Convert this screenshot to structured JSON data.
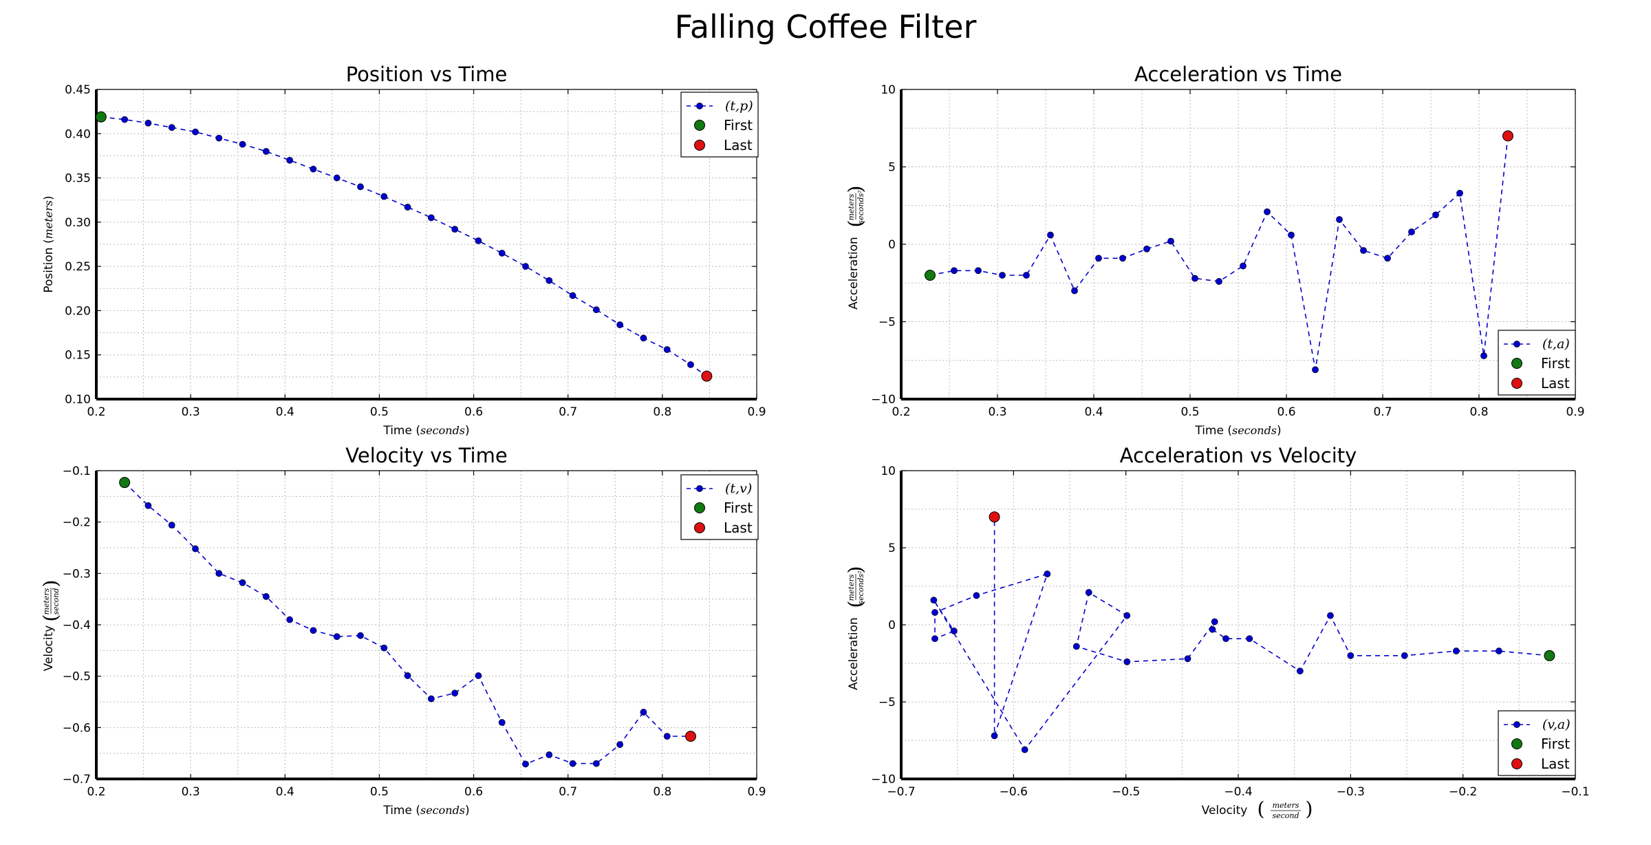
{
  "suptitle": "Falling Coffee Filter",
  "colors": {
    "series": "#0000cc",
    "first": "#127812",
    "last": "#dd1111",
    "grid": "#b8b8b8"
  },
  "chart_data": [
    {
      "type": "line",
      "title": "Position vs Time",
      "xlabel": "Time",
      "xlabel_unit": "seconds",
      "ylabel": "Position",
      "ylabel_unit": "meters",
      "xlim": [
        0.2,
        0.9
      ],
      "ylim": [
        0.1,
        0.45
      ],
      "xticks": [
        0.2,
        0.3,
        0.4,
        0.5,
        0.6,
        0.7,
        0.8,
        0.9
      ],
      "xtick_labels": [
        "0.2",
        "0.3",
        "0.4",
        "0.5",
        "0.6",
        "0.7",
        "0.8",
        "0.9"
      ],
      "yticks": [
        0.1,
        0.15,
        0.2,
        0.25,
        0.3,
        0.35,
        0.4,
        0.45
      ],
      "ytick_labels": [
        "0.10",
        "0.15",
        "0.20",
        "0.25",
        "0.30",
        "0.35",
        "0.40",
        "0.45"
      ],
      "grid": true,
      "legend_position": "top-right",
      "legend": [
        "(t,p)",
        "First",
        "Last"
      ],
      "series": [
        {
          "name": "(t,p)",
          "x": [
            0.205,
            0.23,
            0.255,
            0.28,
            0.305,
            0.33,
            0.355,
            0.38,
            0.405,
            0.43,
            0.455,
            0.48,
            0.505,
            0.53,
            0.555,
            0.58,
            0.605,
            0.63,
            0.655,
            0.68,
            0.705,
            0.73,
            0.755,
            0.78,
            0.805,
            0.83,
            0.847
          ],
          "y": [
            0.419,
            0.416,
            0.412,
            0.407,
            0.402,
            0.395,
            0.388,
            0.38,
            0.37,
            0.36,
            0.35,
            0.34,
            0.329,
            0.317,
            0.305,
            0.292,
            0.279,
            0.265,
            0.25,
            0.234,
            0.217,
            0.201,
            0.184,
            0.169,
            0.156,
            0.139,
            0.126
          ]
        }
      ],
      "first_point": [
        0.205,
        0.419
      ],
      "last_point": [
        0.847,
        0.126
      ]
    },
    {
      "type": "line",
      "title": "Acceleration vs Time",
      "xlabel": "Time",
      "xlabel_unit": "seconds",
      "ylabel": "Acceleration",
      "ylabel_unit_num": "meters",
      "ylabel_unit_den": "seconds²",
      "xlim": [
        0.2,
        0.9
      ],
      "ylim": [
        -10,
        10
      ],
      "xticks": [
        0.2,
        0.3,
        0.4,
        0.5,
        0.6,
        0.7,
        0.8,
        0.9
      ],
      "xtick_labels": [
        "0.2",
        "0.3",
        "0.4",
        "0.5",
        "0.6",
        "0.7",
        "0.8",
        "0.9"
      ],
      "yticks": [
        -10,
        -5,
        0,
        5,
        10
      ],
      "ytick_labels": [
        "−10",
        "−5",
        "0",
        "5",
        "10"
      ],
      "grid": true,
      "legend_position": "bottom-right",
      "legend": [
        "(t,a)",
        "First",
        "Last"
      ],
      "series": [
        {
          "name": "(t,a)",
          "x": [
            0.23,
            0.255,
            0.28,
            0.305,
            0.33,
            0.355,
            0.38,
            0.405,
            0.43,
            0.455,
            0.48,
            0.505,
            0.53,
            0.555,
            0.58,
            0.605,
            0.63,
            0.655,
            0.68,
            0.705,
            0.73,
            0.755,
            0.78,
            0.805,
            0.83
          ],
          "y": [
            -2.0,
            -1.7,
            -1.7,
            -2.0,
            -2.0,
            0.6,
            -3.0,
            -0.9,
            -0.9,
            -0.3,
            0.2,
            -2.2,
            -2.4,
            -1.4,
            2.1,
            0.6,
            -8.1,
            1.6,
            -0.4,
            -0.9,
            0.8,
            1.9,
            3.3,
            -7.2,
            7.0
          ]
        }
      ],
      "first_point": [
        0.23,
        -2.0
      ],
      "last_point": [
        0.83,
        7.0
      ]
    },
    {
      "type": "line",
      "title": "Velocity vs Time",
      "xlabel": "Time",
      "xlabel_unit": "seconds",
      "ylabel": "Velocity",
      "ylabel_unit_num": "meters",
      "ylabel_unit_den": "second",
      "xlim": [
        0.2,
        0.9
      ],
      "ylim": [
        -0.7,
        -0.1
      ],
      "xticks": [
        0.2,
        0.3,
        0.4,
        0.5,
        0.6,
        0.7,
        0.8,
        0.9
      ],
      "xtick_labels": [
        "0.2",
        "0.3",
        "0.4",
        "0.5",
        "0.6",
        "0.7",
        "0.8",
        "0.9"
      ],
      "yticks": [
        -0.7,
        -0.6,
        -0.5,
        -0.4,
        -0.3,
        -0.2,
        -0.1
      ],
      "ytick_labels": [
        "−0.7",
        "−0.6",
        "−0.5",
        "−0.4",
        "−0.3",
        "−0.2",
        "−0.1"
      ],
      "grid": true,
      "legend_position": "top-right",
      "legend": [
        "(t,v)",
        "First",
        "Last"
      ],
      "series": [
        {
          "name": "(t,v)",
          "x": [
            0.23,
            0.255,
            0.28,
            0.305,
            0.33,
            0.355,
            0.38,
            0.405,
            0.43,
            0.455,
            0.48,
            0.505,
            0.53,
            0.555,
            0.58,
            0.605,
            0.63,
            0.655,
            0.68,
            0.705,
            0.73,
            0.755,
            0.78,
            0.805,
            0.83
          ],
          "y": [
            -0.123,
            -0.168,
            -0.206,
            -0.252,
            -0.3,
            -0.318,
            -0.345,
            -0.39,
            -0.411,
            -0.423,
            -0.421,
            -0.445,
            -0.499,
            -0.544,
            -0.533,
            -0.499,
            -0.59,
            -0.671,
            -0.653,
            -0.67,
            -0.67,
            -0.633,
            -0.57,
            -0.617,
            -0.617
          ]
        }
      ],
      "first_point": [
        0.23,
        -0.123
      ],
      "last_point": [
        0.83,
        -0.617
      ]
    },
    {
      "type": "line",
      "title": "Acceleration vs Velocity",
      "xlabel": "Velocity",
      "xlabel_unit_num": "meters",
      "xlabel_unit_den": "second",
      "ylabel": "Acceleration",
      "ylabel_unit_num": "meters",
      "ylabel_unit_den": "seconds²",
      "xlim": [
        -0.7,
        -0.1
      ],
      "ylim": [
        -10,
        10
      ],
      "xticks": [
        -0.7,
        -0.6,
        -0.5,
        -0.4,
        -0.3,
        -0.2,
        -0.1
      ],
      "xtick_labels": [
        "−0.7",
        "−0.6",
        "−0.5",
        "−0.4",
        "−0.3",
        "−0.2",
        "−0.1"
      ],
      "yticks": [
        -10,
        -5,
        0,
        5,
        10
      ],
      "ytick_labels": [
        "−10",
        "−5",
        "0",
        "5",
        "10"
      ],
      "grid": true,
      "legend_position": "bottom-right",
      "legend": [
        "(v,a)",
        "First",
        "Last"
      ],
      "series": [
        {
          "name": "(v,a)",
          "x": [
            -0.123,
            -0.168,
            -0.206,
            -0.252,
            -0.3,
            -0.318,
            -0.345,
            -0.39,
            -0.411,
            -0.423,
            -0.421,
            -0.445,
            -0.499,
            -0.544,
            -0.533,
            -0.499,
            -0.59,
            -0.671,
            -0.653,
            -0.67,
            -0.67,
            -0.633,
            -0.57,
            -0.617,
            -0.617
          ],
          "y": [
            -2.0,
            -1.7,
            -1.7,
            -2.0,
            -2.0,
            0.6,
            -3.0,
            -0.9,
            -0.9,
            -0.3,
            0.2,
            -2.2,
            -2.4,
            -1.4,
            2.1,
            0.6,
            -8.1,
            1.6,
            -0.4,
            -0.9,
            0.8,
            1.9,
            3.3,
            -7.2,
            7.0
          ]
        }
      ],
      "first_point": [
        -0.123,
        -2.0
      ],
      "last_point": [
        -0.617,
        7.0
      ]
    }
  ]
}
